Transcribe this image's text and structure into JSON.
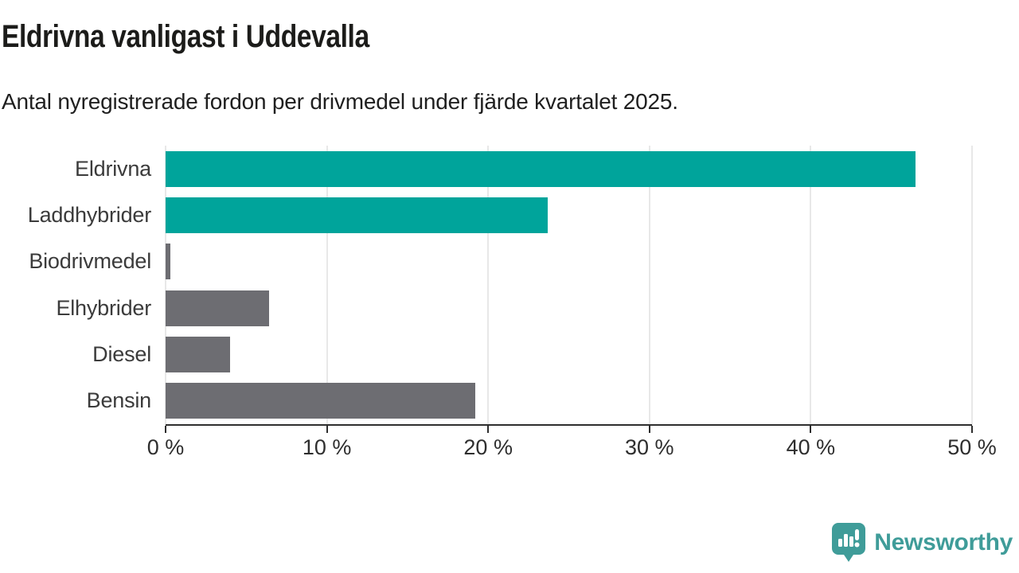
{
  "header": {
    "title": "Eldrivna vanligast i Uddevalla",
    "subtitle": "Antal nyregistrerade fordon per drivmedel under fjärde kvartalet 2025."
  },
  "chart_data": {
    "type": "bar",
    "orientation": "horizontal",
    "categories": [
      "Eldrivna",
      "Laddhybrider",
      "Biodrivmedel",
      "Elhybrider",
      "Diesel",
      "Bensin"
    ],
    "values": [
      46.5,
      23.7,
      0.3,
      6.4,
      4.0,
      19.2
    ],
    "unit": "%",
    "title": "Eldrivna vanligast i Uddevalla",
    "subtitle": "Antal nyregistrerade fordon per drivmedel under fjärde kvartalet 2025.",
    "xlabel": "",
    "ylabel": "",
    "xlim": [
      0,
      50
    ],
    "x_ticks": [
      0,
      10,
      20,
      30,
      40,
      50
    ],
    "x_tick_labels": [
      "0 %",
      "10 %",
      "20 %",
      "30 %",
      "40 %",
      "50 %"
    ],
    "grid": true,
    "legend": false,
    "bar_colors": [
      "#00a49b",
      "#00a49b",
      "#6d6d72",
      "#6d6d72",
      "#6d6d72",
      "#6d6d72"
    ],
    "accent_color": "#00a49b",
    "default_color": "#6d6d72",
    "gridline_color": "#e8e8e8",
    "axis_color": "#2e2e2e"
  },
  "footer": {
    "brand": "Newsworthy",
    "brand_color": "#3f9c99",
    "logo_icon": "newsworthy-bar-chart-bubble-icon"
  }
}
